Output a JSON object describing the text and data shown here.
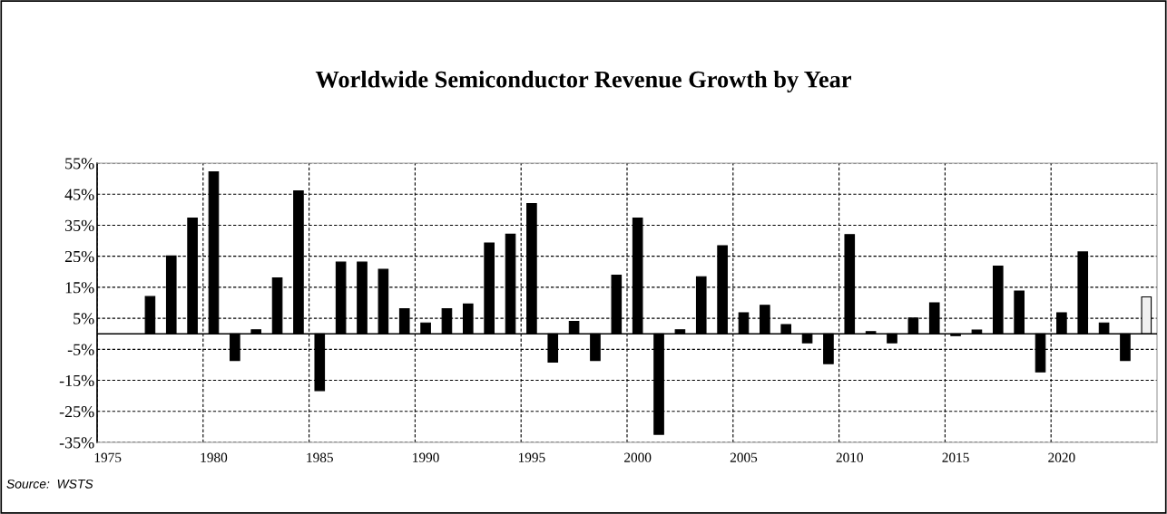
{
  "chart_data": {
    "type": "bar",
    "title": "Worldwide Semiconductor Revenue Growth by Year",
    "categories": [
      "1975",
      null,
      null,
      null,
      null,
      "1980",
      null,
      null,
      null,
      null,
      "1985",
      null,
      null,
      null,
      null,
      "1990",
      null,
      null,
      null,
      null,
      "1995",
      null,
      null,
      null,
      null,
      "2000",
      null,
      null,
      null,
      null,
      "2005",
      null,
      null,
      null,
      null,
      "2010",
      null,
      null,
      null,
      null,
      "2015",
      null,
      null,
      null,
      null,
      "2020",
      null,
      null,
      null,
      null
    ],
    "values": [
      null,
      null,
      12,
      25.1,
      37.3,
      52.2,
      -8.6,
      1.3,
      18.0,
      46.1,
      -18.3,
      23.1,
      23.1,
      20.8,
      8.1,
      3.5,
      8.1,
      9.6,
      29.3,
      32.1,
      42.0,
      -9.1,
      4.0,
      -8.6,
      18.9,
      37.3,
      -32.4,
      1.3,
      18.4,
      28.4,
      6.8,
      9.2,
      3.0,
      -2.9,
      -9.6,
      32.0,
      0.7,
      -2.9,
      5.1,
      10.0,
      -0.6,
      1.2,
      21.8,
      13.8,
      -12.3,
      6.8,
      26.4,
      3.5,
      -8.6,
      11.9
    ],
    "colors": [
      "#000000",
      "#000000",
      "#000000",
      "#000000",
      "#000000",
      "#000000",
      "#000000",
      "#000000",
      "#000000",
      "#000000",
      "#000000",
      "#000000",
      "#000000",
      "#000000",
      "#000000",
      "#000000",
      "#000000",
      "#000000",
      "#000000",
      "#000000",
      "#000000",
      "#000000",
      "#000000",
      "#000000",
      "#000000",
      "#000000",
      "#000000",
      "#000000",
      "#000000",
      "#000000",
      "#000000",
      "#000000",
      "#000000",
      "#000000",
      "#000000",
      "#000000",
      "#000000",
      "#000000",
      "#000000",
      "#000000",
      "#000000",
      "#000000",
      "#000000",
      "#000000",
      "#000000",
      "#000000",
      "#000000",
      "#000000",
      "#000000",
      "#f0f0f0"
    ],
    "ylim": [
      -35,
      55
    ],
    "yticks": [
      {
        "value": -35,
        "label": "-35%"
      },
      {
        "value": -25,
        "label": "-25%"
      },
      {
        "value": -15,
        "label": "-15%"
      },
      {
        "value": -5,
        "label": "-5%"
      },
      {
        "value": 5,
        "label": "5%"
      },
      {
        "value": 15,
        "label": "15%"
      },
      {
        "value": 25,
        "label": "25%"
      },
      {
        "value": 35,
        "label": "35%"
      },
      {
        "value": 45,
        "label": "45%"
      },
      {
        "value": 55,
        "label": "55%"
      }
    ],
    "grid": true,
    "annotations": [
      "Source:  WSTS"
    ]
  }
}
